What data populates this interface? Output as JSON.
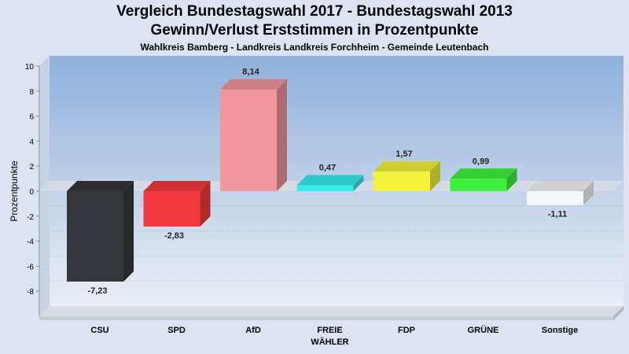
{
  "chart_data": {
    "type": "bar",
    "title": [
      "Vergleich Bundestagswahl 2017 - Bundestagswahl 2013",
      "Gewinn/Verlust Erststimmen in Prozentpunkte"
    ],
    "subtitle": "Wahlkreis Bamberg - Landkreis Landkreis Forchheim - Gemeinde Leutenbach",
    "ylabel": "Prozentpunkte",
    "ylim": [
      -10,
      10
    ],
    "yticks": [
      10,
      8,
      6,
      4,
      2,
      0,
      -2,
      -4,
      -6,
      -8
    ],
    "categories": [
      "CSU",
      "SPD",
      "AfD",
      "FREIE WÄHLER",
      "FDP",
      "GRÜNE",
      "Sonstige"
    ],
    "category_lines": [
      [
        "CSU"
      ],
      [
        "SPD"
      ],
      [
        "AfD"
      ],
      [
        "FREIE",
        "WÄHLER"
      ],
      [
        "FDP"
      ],
      [
        "GRÜNE"
      ],
      [
        "Sonstige"
      ]
    ],
    "values": [
      -7.23,
      -2.83,
      8.14,
      0.47,
      1.57,
      0.99,
      -1.11
    ],
    "value_labels": [
      "-7,23",
      "-2,83",
      "8,14",
      "0,47",
      "1,57",
      "0,99",
      "-1,11"
    ],
    "colors": [
      "#34363b",
      "#f23a3e",
      "#f0969c",
      "#36ecee",
      "#f2f23c",
      "#3ef23c",
      "#f4f6f9"
    ],
    "grid": true,
    "style": "3d"
  }
}
